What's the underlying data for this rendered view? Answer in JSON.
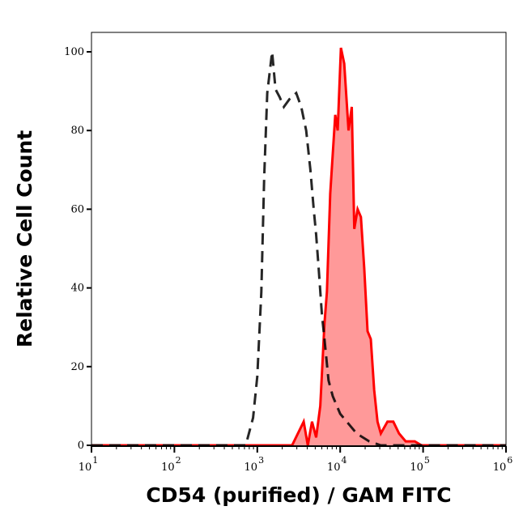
{
  "chart_data": {
    "type": "area",
    "title": "",
    "xlabel": "CD54 (purified) / GAM FITC",
    "ylabel": "Relative Cell Count",
    "xscale": "log",
    "xlim": [
      10,
      1000000
    ],
    "ylim": [
      0,
      104
    ],
    "grid": false,
    "x_ticks": [
      {
        "base": "10",
        "exp": "1",
        "value": 10
      },
      {
        "base": "10",
        "exp": "2",
        "value": 100
      },
      {
        "base": "10",
        "exp": "3",
        "value": 1000
      },
      {
        "base": "10",
        "exp": "4",
        "value": 10000
      },
      {
        "base": "10",
        "exp": "5",
        "value": 100000
      },
      {
        "base": "10",
        "exp": "6",
        "value": 1000000
      }
    ],
    "y_ticks": [
      "0",
      "20",
      "40",
      "60",
      "80",
      "100"
    ],
    "series": [
      {
        "style": "dashed-line",
        "color": "#000000",
        "points": [
          [
            10,
            0
          ],
          [
            725,
            0
          ],
          [
            890,
            7
          ],
          [
            1000,
            17.5
          ],
          [
            1120,
            39
          ],
          [
            1210,
            68
          ],
          [
            1320,
            89.5
          ],
          [
            1510,
            100
          ],
          [
            1660,
            90.5
          ],
          [
            1860,
            88.5
          ],
          [
            2090,
            86
          ],
          [
            2450,
            88
          ],
          [
            2950,
            89.5
          ],
          [
            3390,
            86
          ],
          [
            3890,
            80
          ],
          [
            4370,
            70
          ],
          [
            4790,
            60
          ],
          [
            5130,
            53.5
          ],
          [
            5500,
            45
          ],
          [
            6030,
            33
          ],
          [
            6460,
            27
          ],
          [
            7240,
            16.5
          ],
          [
            8130,
            12.5
          ],
          [
            9120,
            10
          ],
          [
            10000,
            8
          ],
          [
            12000,
            6
          ],
          [
            15800,
            3
          ],
          [
            22400,
            1
          ],
          [
            30900,
            0
          ],
          [
            1000000,
            0
          ]
        ]
      },
      {
        "style": "filled-area",
        "color": "#ff0000",
        "fill": "#ff9999",
        "points": [
          [
            10,
            0
          ],
          [
            2630,
            0
          ],
          [
            3630,
            6
          ],
          [
            4070,
            0
          ],
          [
            4570,
            6
          ],
          [
            5130,
            2
          ],
          [
            5750,
            10
          ],
          [
            6460,
            31
          ],
          [
            6920,
            39
          ],
          [
            7590,
            64
          ],
          [
            8130,
            74
          ],
          [
            8710,
            84
          ],
          [
            9330,
            80
          ],
          [
            10200,
            101
          ],
          [
            11200,
            97
          ],
          [
            12600,
            80
          ],
          [
            13800,
            86
          ],
          [
            14800,
            55
          ],
          [
            16200,
            60
          ],
          [
            17800,
            58
          ],
          [
            19500,
            45
          ],
          [
            21400,
            29
          ],
          [
            23400,
            27
          ],
          [
            25700,
            14
          ],
          [
            28200,
            6
          ],
          [
            30900,
            3
          ],
          [
            37200,
            6
          ],
          [
            43700,
            6
          ],
          [
            51300,
            3
          ],
          [
            61700,
            1
          ],
          [
            79400,
            1
          ],
          [
            95500,
            0
          ],
          [
            1000000,
            0
          ]
        ]
      }
    ]
  }
}
